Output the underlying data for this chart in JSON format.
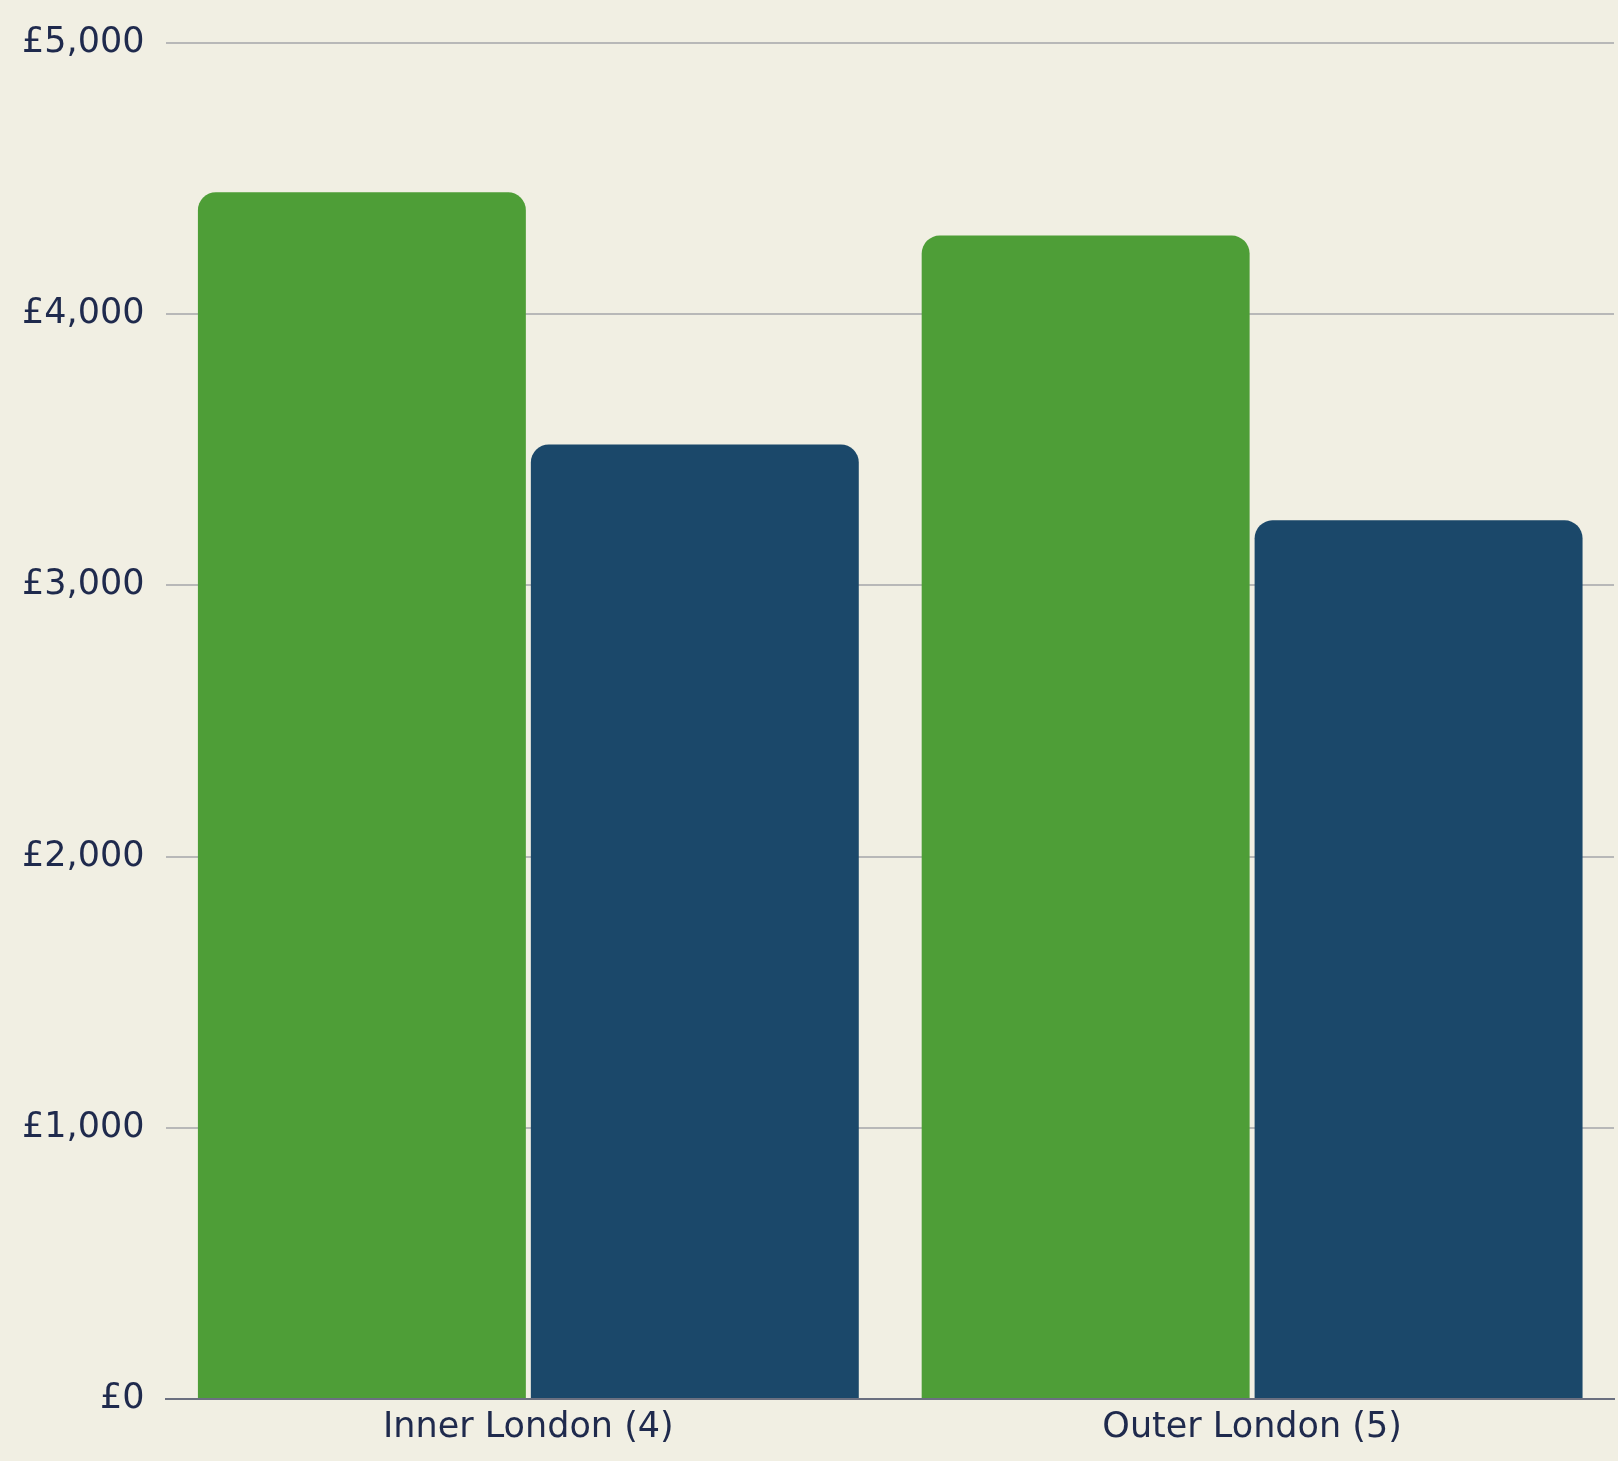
{
  "chart_data": {
    "type": "bar",
    "categories": [
      "Inner London (4)",
      "Outer London (5)"
    ],
    "series": [
      {
        "color": "#4e9e37",
        "values": [
          4450,
          4290
        ]
      },
      {
        "color": "#1b486a",
        "values": [
          3520,
          3240
        ]
      }
    ],
    "ylim": [
      0,
      5000
    ],
    "yticks": [
      {
        "value": 0,
        "label": "£0"
      },
      {
        "value": 1000,
        "label": "£1,000"
      },
      {
        "value": 2000,
        "label": "£2,000"
      },
      {
        "value": 3000,
        "label": "£3,000"
      },
      {
        "value": 4000,
        "label": "£4,000"
      },
      {
        "value": 5000,
        "label": "£5,000"
      }
    ],
    "grid": "y",
    "legend": false
  }
}
